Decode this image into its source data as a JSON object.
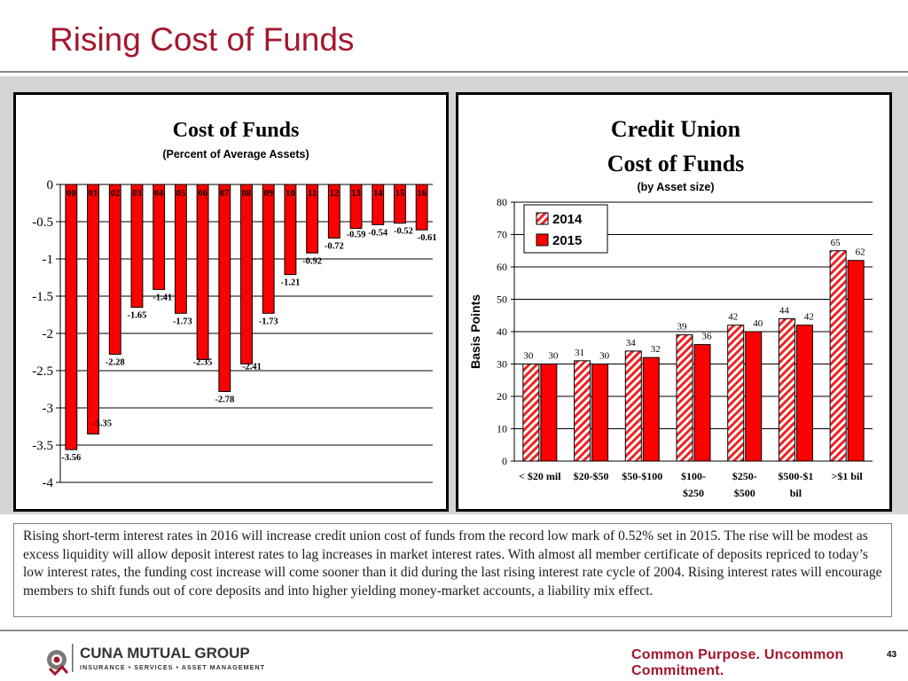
{
  "slide": {
    "title": "Rising Cost of Funds",
    "summary": "Rising short-term interest rates in 2016 will increase credit union cost of funds from the record low mark of 0.52% set in 2015. The rise will be modest as excess liquidity will allow deposit interest rates to lag increases in market interest rates.  With almost all member certificate of deposits repriced to today’s low interest rates, the funding cost increase will come sooner than it did during the last rising interest rate cycle of 2004.   Rising interest rates will encourage members to shift funds out of core deposits and into higher yielding money-market accounts, a liability mix effect.",
    "page_number": "43"
  },
  "footer": {
    "logo_name": "CUNA MUTUAL GROUP",
    "logo_sub": "INSURANCE • SERVICES • ASSET MANAGEMENT",
    "tagline": "Common Purpose. Uncommon Commitment."
  },
  "colors": {
    "accent": "#a3172d",
    "bar_red": "#ff0000",
    "hatch_red": "#ee2222"
  },
  "chart_data": [
    {
      "type": "bar",
      "title": "Cost of Funds",
      "subtitle": "(Percent of Average Assets)",
      "categories": [
        "00",
        "01",
        "02",
        "03",
        "04",
        "05",
        "06",
        "07",
        "08",
        "09",
        "10",
        "11",
        "12",
        "13",
        "14",
        "15",
        "16"
      ],
      "values": [
        -3.56,
        -3.35,
        -2.28,
        -1.65,
        -1.41,
        -1.73,
        -2.35,
        -2.78,
        -2.41,
        -1.73,
        -1.21,
        -0.92,
        -0.72,
        -0.59,
        -0.54,
        -0.52,
        -0.61
      ],
      "data_labels": [
        "-3.56",
        "-3.35",
        "-2.28",
        "-1.65",
        "-1.41",
        "-1.73",
        "-2.35",
        "-2.78",
        "-2.41",
        "-1.73",
        "-1.21",
        "-0.92",
        "-0.72",
        "-0.59",
        "-0.54",
        "-0.52",
        "-0.61"
      ],
      "ylim": [
        -4,
        0
      ],
      "yticks": [
        "0",
        "-0.5",
        "-1",
        "-1.5",
        "-2",
        "-2.5",
        "-3",
        "-3.5",
        "-4"
      ],
      "grid": true,
      "legend": "none"
    },
    {
      "type": "bar",
      "title": "Credit Union Cost of Funds",
      "subtitle": "(by Asset size)",
      "ylabel": "Basis Points",
      "categories": [
        "< $20 mil",
        "$20-$50",
        "$50-$100",
        "$100-$250",
        "$250-$500",
        "$500-$1 bil",
        ">$1 bil"
      ],
      "series": [
        {
          "name": "2014",
          "values": [
            30,
            31,
            34,
            39,
            42,
            44,
            65
          ]
        },
        {
          "name": "2015",
          "values": [
            30,
            30,
            32,
            36,
            40,
            42,
            62
          ]
        }
      ],
      "ylim": [
        0,
        80
      ],
      "yticks": [
        "0",
        "10",
        "20",
        "30",
        "40",
        "50",
        "60",
        "70",
        "80"
      ],
      "grid": true,
      "legend": "top-left"
    }
  ]
}
